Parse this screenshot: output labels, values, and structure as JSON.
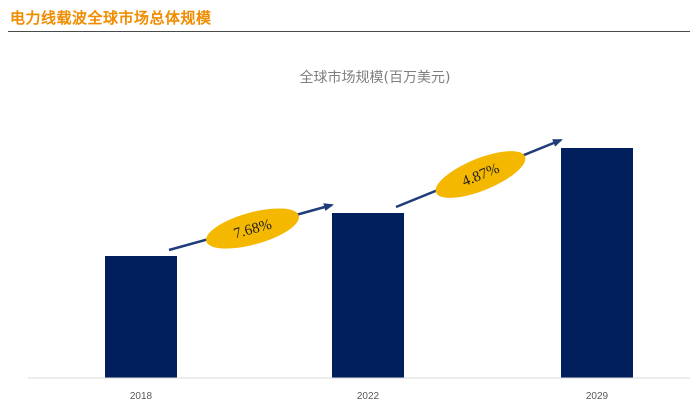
{
  "header": {
    "title": "电力线载波全球市场总体规模"
  },
  "chart_data": {
    "type": "bar",
    "title": "全球市场规模(百万美元)",
    "categories": [
      "2018",
      "2022",
      "2029"
    ],
    "values": [
      122,
      165,
      230
    ],
    "ylim": [
      0,
      250
    ],
    "grid": false,
    "legend": "none",
    "colors": {
      "bar": "#001f5c",
      "arrow": "#1f3d7a",
      "badge": "#f5b800"
    },
    "annotations": [
      {
        "label": "7.68%",
        "from": "2018",
        "to": "2022"
      },
      {
        "label": "4.87%",
        "from": "2022",
        "to": "2029"
      }
    ]
  }
}
